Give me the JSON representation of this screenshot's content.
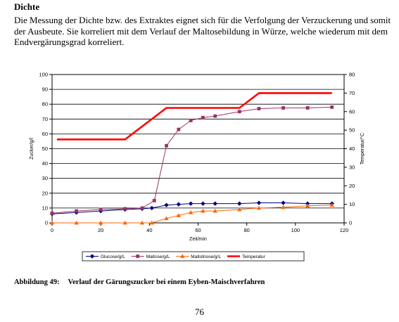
{
  "document": {
    "heading": "Dichte",
    "paragraph": "Die Messung der Dichte bzw. des Extraktes eignet sich für die Verfolgung der Verzuckerung und somit der Ausbeute. Sie korreliert mit dem Verlauf der Maltosebildung in Würze, welche wiederum mit dem Endvergärungsgrad korreliert.",
    "caption_label": "Abbildung 49:",
    "caption_text": "Verlauf der Gärungszucker bei einem Eyben-Maischverfahren",
    "page_number": "76"
  },
  "chart_data": {
    "type": "line",
    "title": "",
    "xlabel": "Zeit/min",
    "ylabel": "Zucker/g/l",
    "y2label": "Temperatur/°C",
    "xlim": [
      0,
      120
    ],
    "ylim": [
      0,
      100
    ],
    "y2lim": [
      0,
      80
    ],
    "x_ticks": [
      0,
      20,
      40,
      60,
      80,
      100,
      120
    ],
    "y_ticks": [
      0,
      10,
      20,
      30,
      40,
      50,
      60,
      70,
      80,
      90,
      100
    ],
    "y2_ticks": [
      0,
      10,
      20,
      30,
      40,
      50,
      60,
      70,
      80
    ],
    "grid": "horizontal",
    "legend_position": "bottom",
    "series": [
      {
        "name": "Glucose/g/L",
        "axis": "left",
        "color": "#000080",
        "marker": "diamond",
        "points": [
          [
            0,
            6
          ],
          [
            10,
            7
          ],
          [
            20,
            8
          ],
          [
            30,
            9
          ],
          [
            37,
            9.5
          ],
          [
            41,
            10
          ],
          [
            47,
            12
          ],
          [
            52,
            12.5
          ],
          [
            57,
            13
          ],
          [
            62,
            13
          ],
          [
            67,
            13
          ],
          [
            77,
            13
          ],
          [
            85,
            13.5
          ],
          [
            95,
            13.5
          ],
          [
            105,
            13
          ],
          [
            115,
            13
          ]
        ]
      },
      {
        "name": "Maltose/g/L",
        "axis": "left",
        "color": "#993366",
        "marker": "square",
        "points": [
          [
            0,
            6.5
          ],
          [
            10,
            8
          ],
          [
            20,
            9
          ],
          [
            30,
            9.5
          ],
          [
            37,
            10
          ],
          [
            42,
            15
          ],
          [
            47,
            52
          ],
          [
            52,
            63
          ],
          [
            57,
            69
          ],
          [
            62,
            71
          ],
          [
            67,
            72
          ],
          [
            77,
            75
          ],
          [
            85,
            77
          ],
          [
            95,
            77.5
          ],
          [
            105,
            77.5
          ],
          [
            115,
            78
          ]
        ]
      },
      {
        "name": "Maltotriose/g/L",
        "axis": "left",
        "color": "#FF6600",
        "marker": "triangle",
        "points": [
          [
            0,
            0
          ],
          [
            10,
            0
          ],
          [
            20,
            0
          ],
          [
            30,
            0
          ],
          [
            37,
            0
          ],
          [
            41,
            0
          ],
          [
            47,
            3
          ],
          [
            52,
            5
          ],
          [
            57,
            7
          ],
          [
            62,
            8
          ],
          [
            67,
            8
          ],
          [
            77,
            9
          ],
          [
            85,
            10
          ],
          [
            95,
            10.5
          ],
          [
            105,
            11.5
          ],
          [
            115,
            12
          ]
        ]
      },
      {
        "name": "Temperatur",
        "axis": "right",
        "color": "#FF0000",
        "marker": "none",
        "points": [
          [
            2,
            45
          ],
          [
            30,
            45
          ],
          [
            47,
            62
          ],
          [
            77,
            62
          ],
          [
            85,
            70
          ],
          [
            115,
            70
          ]
        ]
      }
    ]
  }
}
